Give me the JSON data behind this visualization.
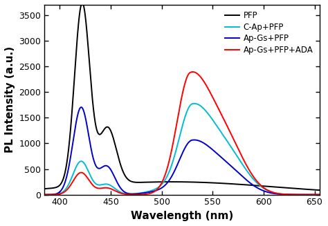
{
  "xlabel": "Wavelength (nm)",
  "ylabel": "PL Intensity (a.u.)",
  "xlim": [
    385,
    655
  ],
  "ylim": [
    0,
    3700
  ],
  "xticks": [
    400,
    450,
    500,
    550,
    600,
    650
  ],
  "yticks": [
    0,
    500,
    1000,
    1500,
    2000,
    2500,
    3000,
    3500
  ],
  "legend_labels": [
    "PFP",
    "C-Ap+PFP",
    "Ap-Gs+PFP",
    "Ap-Gs+PFP+ADA"
  ],
  "colors": [
    "#000000",
    "#00bcd4",
    "#0000cd",
    "#ff0000"
  ],
  "linewidth": 1.4,
  "legend_fontsize": 8.5,
  "axis_fontsize": 11,
  "tick_fontsize": 9
}
